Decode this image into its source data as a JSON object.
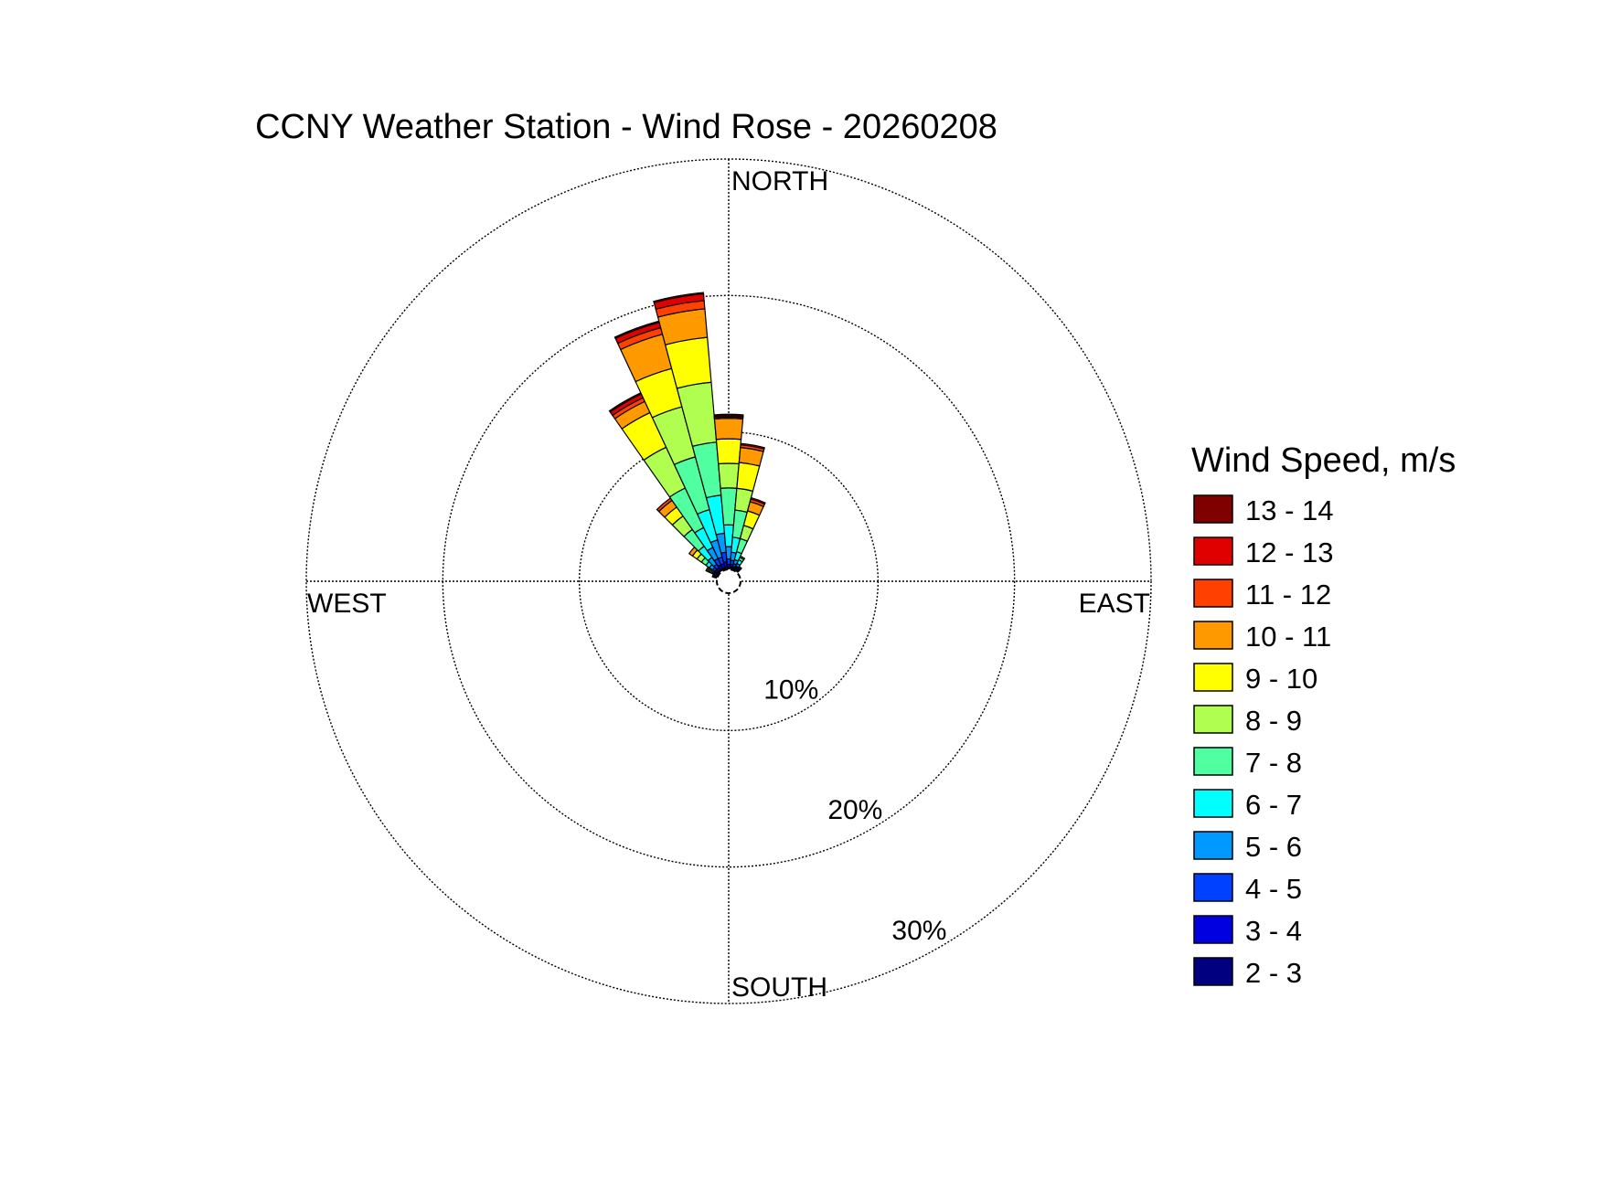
{
  "chart_data": {
    "type": "polar-stacked-bar",
    "title": "CCNY Weather Station - Wind Rose - 20260208",
    "direction_labels": {
      "north": "NORTH",
      "south": "SOUTH",
      "east": "EAST",
      "west": "WEST"
    },
    "radial_axis": {
      "unit": "percent",
      "max": 30,
      "rings": [
        {
          "value": 10,
          "label": "10%"
        },
        {
          "value": 20,
          "label": "20%"
        },
        {
          "value": 30,
          "label": "30%"
        }
      ],
      "grid": true
    },
    "legend": {
      "title": "Wind Speed, m/s",
      "placement": "right",
      "bins": [
        {
          "label": "13 - 14",
          "color": "#800000"
        },
        {
          "label": "12 - 13",
          "color": "#e00000"
        },
        {
          "label": "11 - 12",
          "color": "#ff4000"
        },
        {
          "label": "10 - 11",
          "color": "#ff9900"
        },
        {
          "label": "9 - 10",
          "color": "#ffff00"
        },
        {
          "label": "8 - 9",
          "color": "#b0ff50"
        },
        {
          "label": "7 - 8",
          "color": "#50ffa0"
        },
        {
          "label": "6 - 7",
          "color": "#00ffff"
        },
        {
          "label": "5 - 6",
          "color": "#0099ff"
        },
        {
          "label": "4 - 5",
          "color": "#0040ff"
        },
        {
          "label": "3 - 4",
          "color": "#0000e0"
        },
        {
          "label": "2 - 3",
          "color": "#000080"
        }
      ]
    },
    "sector_width_deg": 10,
    "bin_order": [
      "2 - 3",
      "3 - 4",
      "4 - 5",
      "5 - 6",
      "6 - 7",
      "7 - 8",
      "8 - 9",
      "9 - 10",
      "10 - 11",
      "11 - 12",
      "12 - 13",
      "13 - 14"
    ],
    "sectors": [
      {
        "direction_deg": 300,
        "values": [
          0.1,
          0.1,
          0.1,
          0.1,
          0.1,
          0.1,
          0.1,
          0.1,
          0.1,
          0,
          0,
          0
        ]
      },
      {
        "direction_deg": 310,
        "values": [
          0.1,
          0.2,
          0.2,
          0.3,
          0.3,
          0.4,
          0.4,
          0.4,
          0.3,
          0,
          0,
          0
        ]
      },
      {
        "direction_deg": 320,
        "values": [
          0.1,
          0.2,
          0.3,
          0.6,
          1.0,
          1.5,
          1.2,
          0.8,
          0.6,
          0.2,
          0,
          0
        ]
      },
      {
        "direction_deg": 330,
        "values": [
          0.1,
          0.3,
          0.5,
          0.9,
          1.6,
          3.2,
          3.3,
          2.8,
          0.9,
          0.3,
          0.3,
          0.1
        ]
      },
      {
        "direction_deg": 340,
        "values": [
          0.1,
          0.3,
          0.5,
          1.3,
          2.3,
          4.0,
          3.8,
          2.9,
          2.6,
          0.5,
          0.4,
          0.1
        ]
      },
      {
        "direction_deg": 350,
        "values": [
          0.1,
          0.4,
          0.7,
          1.4,
          2.8,
          3.9,
          4.4,
          3.3,
          2.1,
          0.6,
          0.5,
          0.1
        ]
      },
      {
        "direction_deg": 0,
        "values": [
          0.1,
          0.2,
          0.4,
          0.9,
          1.6,
          2.7,
          1.8,
          1.8,
          1.5,
          0.1,
          0.1,
          0.1
        ]
      },
      {
        "direction_deg": 10,
        "values": [
          0.1,
          0.2,
          0.3,
          0.6,
          1.1,
          2.0,
          1.6,
          1.9,
          1.1,
          0.2,
          0.1,
          0
        ]
      },
      {
        "direction_deg": 20,
        "values": [
          0.1,
          0.1,
          0.2,
          0.3,
          0.6,
          1.0,
          1.0,
          1.1,
          0.7,
          0.2,
          0.1,
          0
        ]
      },
      {
        "direction_deg": 30,
        "values": [
          0.1,
          0.1,
          0.1,
          0.2,
          0.3,
          0.2,
          0.1,
          0,
          0,
          0,
          0,
          0
        ]
      },
      {
        "direction_deg": 40,
        "values": [
          0.1,
          0.1,
          0.1,
          0.1,
          0,
          0,
          0,
          0,
          0,
          0,
          0,
          0
        ]
      },
      {
        "direction_deg": 290,
        "values": [
          0.1,
          0.1,
          0.1,
          0,
          0,
          0,
          0,
          0,
          0,
          0,
          0,
          0
        ]
      }
    ]
  }
}
